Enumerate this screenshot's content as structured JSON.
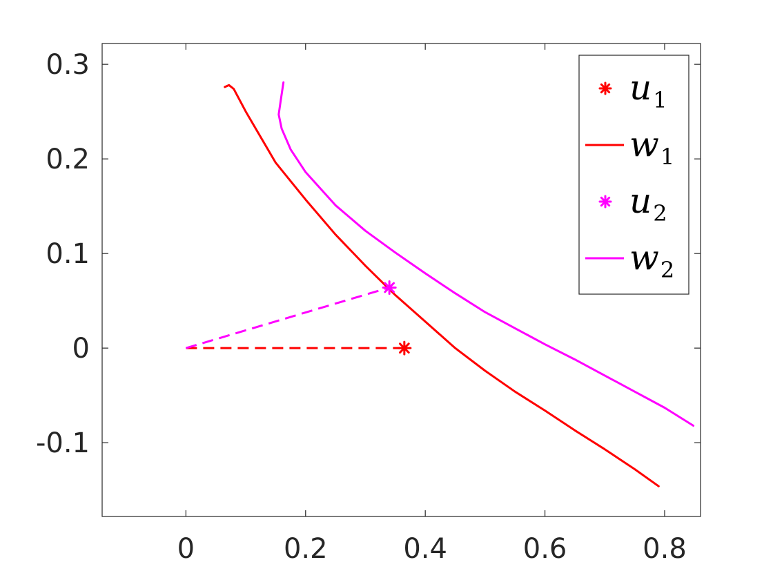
{
  "chart_data": {
    "type": "line",
    "title": "",
    "xlabel": "",
    "ylabel": "",
    "xlim": [
      -0.14,
      0.86
    ],
    "ylim": [
      -0.178,
      0.322
    ],
    "xticks": [
      0,
      0.2,
      0.4,
      0.6,
      0.8
    ],
    "xtick_labels": [
      "0",
      "0.2",
      "0.4",
      "0.6",
      "0.8"
    ],
    "yticks": [
      -0.1,
      0,
      0.1,
      0.2,
      0.3
    ],
    "ytick_labels": [
      "-0.1",
      "0",
      "0.1",
      "0.2",
      "0.3"
    ],
    "grid": false,
    "legend_position": "top-right",
    "series": [
      {
        "name": "u",
        "subscript": "1",
        "color": "#ff0000",
        "style": "marker",
        "marker": "asterisk",
        "points": [
          [
            0.365,
            0.0
          ]
        ],
        "dashed_from_origin": true
      },
      {
        "name": "w",
        "subscript": "1",
        "color": "#ff0000",
        "style": "solid",
        "points": [
          [
            0.065,
            0.276
          ],
          [
            0.072,
            0.278
          ],
          [
            0.08,
            0.274
          ],
          [
            0.1,
            0.25
          ],
          [
            0.15,
            0.196
          ],
          [
            0.2,
            0.157
          ],
          [
            0.25,
            0.12
          ],
          [
            0.3,
            0.087
          ],
          [
            0.35,
            0.056
          ],
          [
            0.4,
            0.028
          ],
          [
            0.45,
            0.0
          ],
          [
            0.5,
            -0.024
          ],
          [
            0.55,
            -0.046
          ],
          [
            0.6,
            -0.066
          ],
          [
            0.65,
            -0.087
          ],
          [
            0.7,
            -0.107
          ],
          [
            0.75,
            -0.128
          ],
          [
            0.79,
            -0.146
          ]
        ]
      },
      {
        "name": "u",
        "subscript": "2",
        "color": "#ff00ff",
        "style": "marker",
        "marker": "asterisk",
        "points": [
          [
            0.34,
            0.064
          ]
        ],
        "dashed_from_origin": true
      },
      {
        "name": "w",
        "subscript": "2",
        "color": "#ff00ff",
        "style": "solid",
        "points": [
          [
            0.163,
            0.281
          ],
          [
            0.158,
            0.26
          ],
          [
            0.155,
            0.247
          ],
          [
            0.16,
            0.232
          ],
          [
            0.175,
            0.21
          ],
          [
            0.2,
            0.186
          ],
          [
            0.25,
            0.151
          ],
          [
            0.3,
            0.124
          ],
          [
            0.35,
            0.101
          ],
          [
            0.4,
            0.079
          ],
          [
            0.45,
            0.058
          ],
          [
            0.5,
            0.038
          ],
          [
            0.55,
            0.021
          ],
          [
            0.6,
            0.004
          ],
          [
            0.65,
            -0.012
          ],
          [
            0.7,
            -0.029
          ],
          [
            0.75,
            -0.046
          ],
          [
            0.8,
            -0.063
          ],
          [
            0.848,
            -0.082
          ]
        ]
      }
    ]
  }
}
